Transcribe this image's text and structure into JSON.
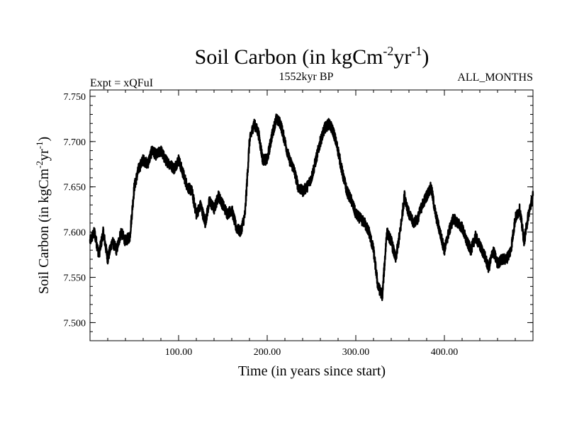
{
  "chart_data": {
    "type": "line",
    "title": {
      "text": "Soil Carbon (in kgCm",
      "sup1": "-2",
      "mid": "yr",
      "sup2": "-1",
      "close": ")"
    },
    "subtitle_left": "Expt = xQFuI",
    "subtitle_center": "1552kyr BP",
    "subtitle_right": "ALL_MONTHS",
    "xlabel": "Time (in years since start)",
    "ylabel": {
      "text": "Soil Carbon (in kgCm",
      "sup1": "-2",
      "mid": "yr",
      "sup2": "-1",
      "close": ")"
    },
    "xlim": [
      0,
      500
    ],
    "ylim": [
      7.48,
      7.757
    ],
    "xticks": [
      100,
      200,
      300,
      400
    ],
    "xtick_labels": [
      "100.00",
      "200.00",
      "300.00",
      "400.00"
    ],
    "yticks": [
      7.5,
      7.55,
      7.6,
      7.65,
      7.7,
      7.75
    ],
    "ytick_labels": [
      "7.500",
      "7.550",
      "7.600",
      "7.650",
      "7.700",
      "7.750"
    ],
    "grid": false,
    "series": [
      {
        "color": "#000000",
        "x": [
          0,
          5,
          10,
          15,
          20,
          25,
          30,
          35,
          40,
          45,
          50,
          55,
          60,
          65,
          70,
          75,
          80,
          85,
          90,
          95,
          100,
          105,
          110,
          115,
          120,
          125,
          130,
          135,
          140,
          145,
          150,
          155,
          160,
          165,
          170,
          175,
          180,
          185,
          190,
          195,
          200,
          205,
          210,
          215,
          220,
          225,
          230,
          235,
          240,
          245,
          250,
          255,
          260,
          265,
          270,
          275,
          280,
          285,
          290,
          295,
          300,
          305,
          310,
          315,
          320,
          325,
          330,
          335,
          340,
          345,
          350,
          355,
          360,
          365,
          370,
          375,
          380,
          385,
          390,
          395,
          400,
          405,
          410,
          415,
          420,
          425,
          430,
          435,
          440,
          445,
          450,
          455,
          460,
          465,
          470,
          475,
          480,
          485,
          490,
          495,
          500
        ],
        "y": [
          7.59,
          7.6,
          7.575,
          7.6,
          7.57,
          7.59,
          7.58,
          7.6,
          7.59,
          7.595,
          7.65,
          7.67,
          7.68,
          7.675,
          7.69,
          7.685,
          7.69,
          7.68,
          7.675,
          7.67,
          7.68,
          7.665,
          7.65,
          7.645,
          7.62,
          7.63,
          7.61,
          7.635,
          7.625,
          7.64,
          7.63,
          7.62,
          7.625,
          7.605,
          7.6,
          7.62,
          7.7,
          7.72,
          7.71,
          7.68,
          7.68,
          7.705,
          7.725,
          7.72,
          7.7,
          7.68,
          7.67,
          7.65,
          7.645,
          7.65,
          7.66,
          7.68,
          7.7,
          7.715,
          7.72,
          7.71,
          7.69,
          7.665,
          7.645,
          7.635,
          7.62,
          7.615,
          7.61,
          7.6,
          7.58,
          7.54,
          7.53,
          7.6,
          7.59,
          7.57,
          7.6,
          7.64,
          7.62,
          7.61,
          7.615,
          7.63,
          7.64,
          7.65,
          7.62,
          7.6,
          7.58,
          7.6,
          7.615,
          7.61,
          7.605,
          7.59,
          7.58,
          7.595,
          7.585,
          7.575,
          7.56,
          7.58,
          7.565,
          7.57,
          7.57,
          7.58,
          7.615,
          7.625,
          7.59,
          7.62,
          7.64
        ]
      }
    ]
  }
}
